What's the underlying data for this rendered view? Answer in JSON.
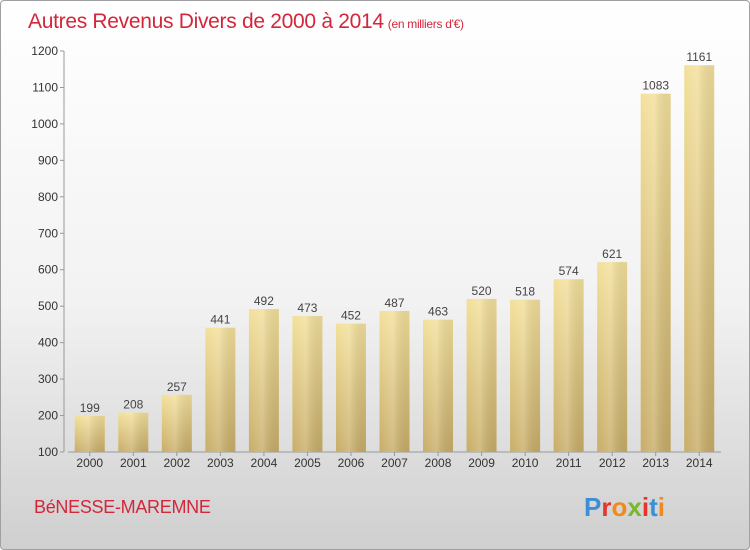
{
  "header": {
    "title": "Autres Revenus Divers de 2000 à 2014",
    "unit": "(en milliers d'€)"
  },
  "footer": {
    "city": "BéNESSE-MAREMNE",
    "brand": "Proxiti"
  },
  "colors": {
    "title": "#d4263a",
    "bar_light": "#f3e09b",
    "bar_dark": "#c8ad68",
    "brand_letters": [
      "#3c8fd6",
      "#e5352b",
      "#f08a1d",
      "#79b82b",
      "#e5352b",
      "#3c8fd6",
      "#f08a1d"
    ]
  },
  "chart_data": {
    "type": "bar",
    "title": "Autres Revenus Divers de 2000 à 2014",
    "categories": [
      "2000",
      "2001",
      "2002",
      "2003",
      "2004",
      "2005",
      "2006",
      "2007",
      "2008",
      "2009",
      "2010",
      "2011",
      "2012",
      "2013",
      "2014"
    ],
    "values": [
      199,
      208,
      257,
      441,
      492,
      473,
      452,
      487,
      463,
      520,
      518,
      574,
      621,
      1083,
      1161
    ],
    "ylim": [
      100,
      1200
    ],
    "yticks": [
      100,
      200,
      300,
      400,
      500,
      600,
      700,
      800,
      900,
      1000,
      1100,
      1200
    ],
    "grid": false,
    "data_labels": true
  }
}
